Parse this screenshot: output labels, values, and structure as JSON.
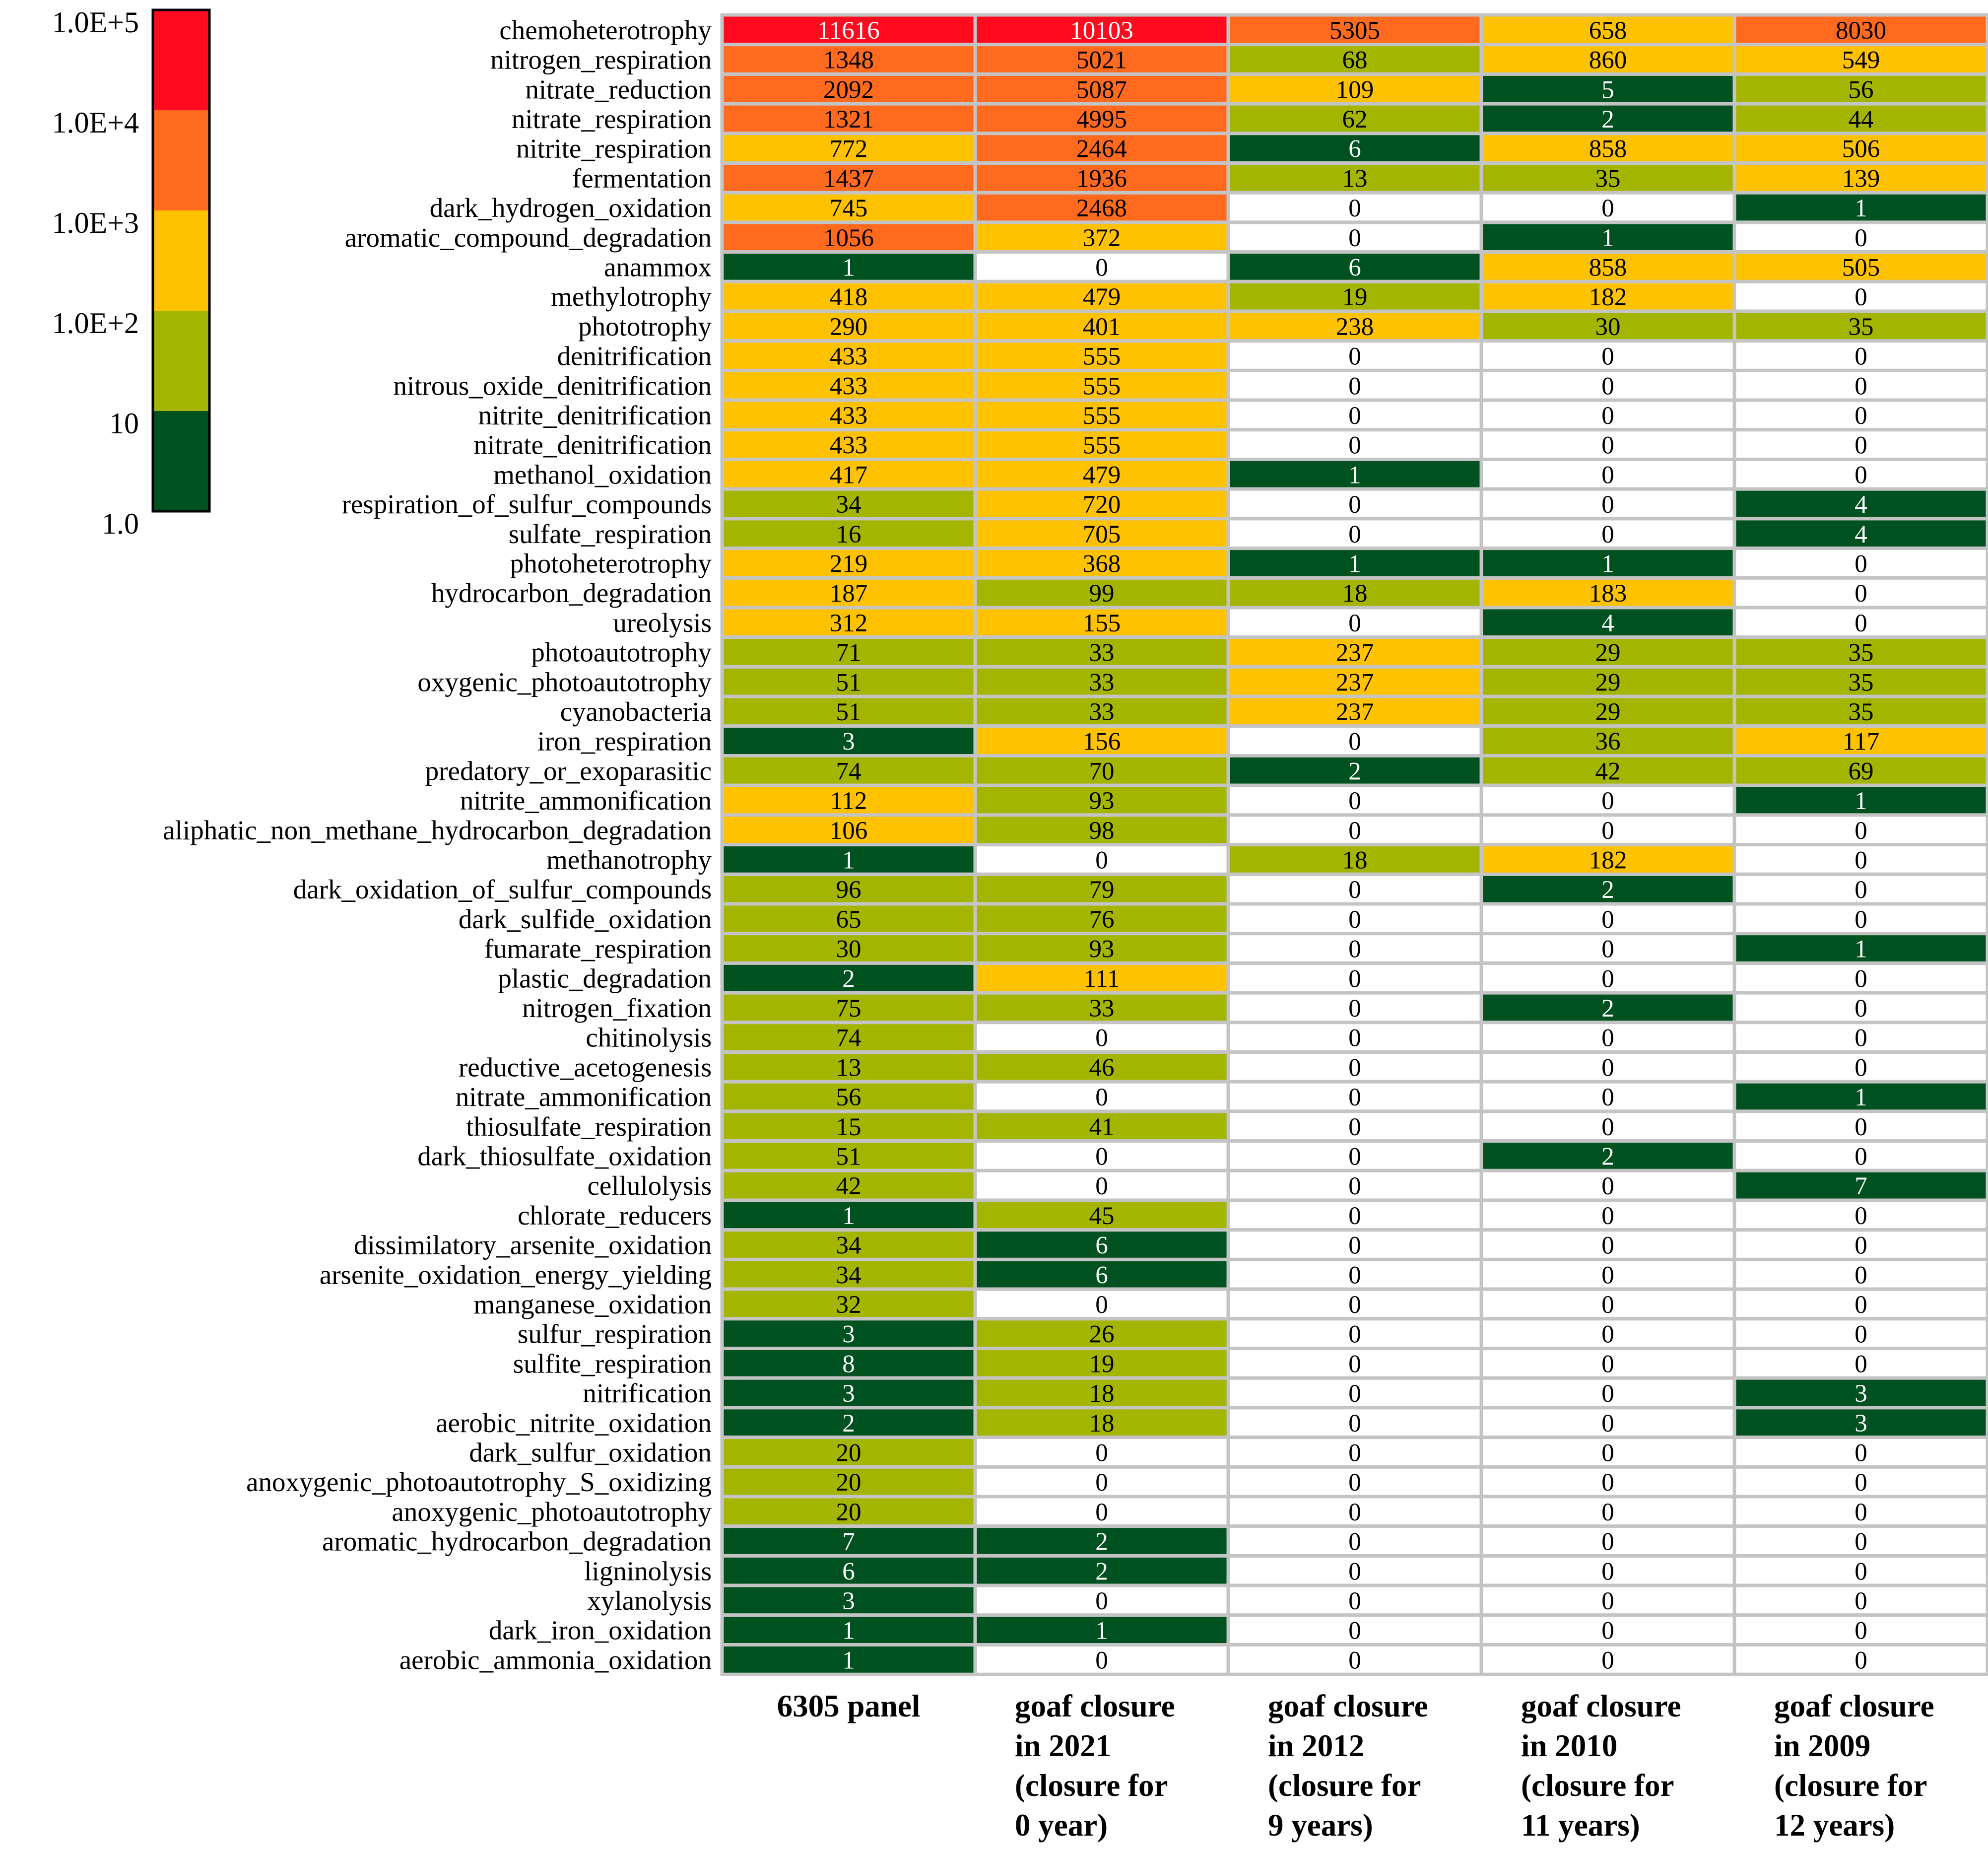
{
  "chart_data": {
    "type": "heatmap",
    "title": "",
    "scale": "log10",
    "columns": [
      [
        "6305 panel"
      ],
      [
        "goaf closure",
        "in 2021",
        "(closure for",
        "0 year)"
      ],
      [
        "goaf closure",
        "in 2012",
        "(closure for",
        "9 years)"
      ],
      [
        "goaf closure",
        "in 2010",
        "(closure for",
        "11 years)"
      ],
      [
        "goaf closure",
        "in 2009",
        "(closure for",
        "12 years)"
      ]
    ],
    "rows": [
      "chemoheterotrophy",
      "nitrogen_respiration",
      "nitrate_reduction",
      "nitrate_respiration",
      "nitrite_respiration",
      "fermentation",
      "dark_hydrogen_oxidation",
      "aromatic_compound_degradation",
      "anammox",
      "methylotrophy",
      "phototrophy",
      "denitrification",
      "nitrous_oxide_denitrification",
      "nitrite_denitrification",
      "nitrate_denitrification",
      "methanol_oxidation",
      "respiration_of_sulfur_compounds",
      "sulfate_respiration",
      "photoheterotrophy",
      "hydrocarbon_degradation",
      "ureolysis",
      "photoautotrophy",
      "oxygenic_photoautotrophy",
      "cyanobacteria",
      "iron_respiration",
      "predatory_or_exoparasitic",
      "nitrite_ammonification",
      "aliphatic_non_methane_hydrocarbon_degradation",
      "methanotrophy",
      "dark_oxidation_of_sulfur_compounds",
      "dark_sulfide_oxidation",
      "fumarate_respiration",
      "plastic_degradation",
      "nitrogen_fixation",
      "chitinolysis",
      "reductive_acetogenesis",
      "nitrate_ammonification",
      "thiosulfate_respiration",
      "dark_thiosulfate_oxidation",
      "cellulolysis",
      "chlorate_reducers",
      "dissimilatory_arsenite_oxidation",
      "arsenite_oxidation_energy_yielding",
      "manganese_oxidation",
      "sulfur_respiration",
      "sulfite_respiration",
      "nitrification",
      "aerobic_nitrite_oxidation",
      "dark_sulfur_oxidation",
      "anoxygenic_photoautotrophy_S_oxidizing",
      "anoxygenic_photoautotrophy",
      "aromatic_hydrocarbon_degradation",
      "ligninolysis",
      "xylanolysis",
      "dark_iron_oxidation",
      "aerobic_ammonia_oxidation"
    ],
    "values": [
      [
        11616,
        10103,
        5305,
        658,
        8030
      ],
      [
        1348,
        5021,
        68,
        860,
        549
      ],
      [
        2092,
        5087,
        109,
        5,
        56
      ],
      [
        1321,
        4995,
        62,
        2,
        44
      ],
      [
        772,
        2464,
        6,
        858,
        506
      ],
      [
        1437,
        1936,
        13,
        35,
        139
      ],
      [
        745,
        2468,
        0,
        0,
        1
      ],
      [
        1056,
        372,
        0,
        1,
        0
      ],
      [
        1,
        0,
        6,
        858,
        505
      ],
      [
        418,
        479,
        19,
        182,
        0
      ],
      [
        290,
        401,
        238,
        30,
        35
      ],
      [
        433,
        555,
        0,
        0,
        0
      ],
      [
        433,
        555,
        0,
        0,
        0
      ],
      [
        433,
        555,
        0,
        0,
        0
      ],
      [
        433,
        555,
        0,
        0,
        0
      ],
      [
        417,
        479,
        1,
        0,
        0
      ],
      [
        34,
        720,
        0,
        0,
        4
      ],
      [
        16,
        705,
        0,
        0,
        4
      ],
      [
        219,
        368,
        1,
        1,
        0
      ],
      [
        187,
        99,
        18,
        183,
        0
      ],
      [
        312,
        155,
        0,
        4,
        0
      ],
      [
        71,
        33,
        237,
        29,
        35
      ],
      [
        51,
        33,
        237,
        29,
        35
      ],
      [
        51,
        33,
        237,
        29,
        35
      ],
      [
        3,
        156,
        0,
        36,
        117
      ],
      [
        74,
        70,
        2,
        42,
        69
      ],
      [
        112,
        93,
        0,
        0,
        1
      ],
      [
        106,
        98,
        0,
        0,
        0
      ],
      [
        1,
        0,
        18,
        182,
        0
      ],
      [
        96,
        79,
        0,
        2,
        0
      ],
      [
        65,
        76,
        0,
        0,
        0
      ],
      [
        30,
        93,
        0,
        0,
        1
      ],
      [
        2,
        111,
        0,
        0,
        0
      ],
      [
        75,
        33,
        0,
        2,
        0
      ],
      [
        74,
        0,
        0,
        0,
        0
      ],
      [
        13,
        46,
        0,
        0,
        0
      ],
      [
        56,
        0,
        0,
        0,
        1
      ],
      [
        15,
        41,
        0,
        0,
        0
      ],
      [
        51,
        0,
        0,
        2,
        0
      ],
      [
        42,
        0,
        0,
        0,
        7
      ],
      [
        1,
        45,
        0,
        0,
        0
      ],
      [
        34,
        6,
        0,
        0,
        0
      ],
      [
        34,
        6,
        0,
        0,
        0
      ],
      [
        32,
        0,
        0,
        0,
        0
      ],
      [
        3,
        26,
        0,
        0,
        0
      ],
      [
        8,
        19,
        0,
        0,
        0
      ],
      [
        3,
        18,
        0,
        0,
        3
      ],
      [
        2,
        18,
        0,
        0,
        3
      ],
      [
        20,
        0,
        0,
        0,
        0
      ],
      [
        20,
        0,
        0,
        0,
        0
      ],
      [
        20,
        0,
        0,
        0,
        0
      ],
      [
        7,
        2,
        0,
        0,
        0
      ],
      [
        6,
        2,
        0,
        0,
        0
      ],
      [
        3,
        0,
        0,
        0,
        0
      ],
      [
        1,
        1,
        0,
        0,
        0
      ],
      [
        1,
        0,
        0,
        0,
        0
      ]
    ],
    "legend": {
      "ticks": [
        "1.0E+5",
        "1.0E+4",
        "1.0E+3",
        "1.0E+2",
        "10",
        "1.0"
      ],
      "bins": [
        {
          "min": 10000,
          "max": 100000,
          "color": "#ff0a1e"
        },
        {
          "min": 1000,
          "max": 10000,
          "color": "#ff6a1f"
        },
        {
          "min": 100,
          "max": 1000,
          "color": "#ffc200"
        },
        {
          "min": 10,
          "max": 100,
          "color": "#a4b500"
        },
        {
          "min": 1,
          "max": 10,
          "color": "#005120"
        }
      ],
      "zero_color": "#ffffff"
    },
    "colors": {
      "grid": "#c4c4c4",
      "legend_border": "#000000",
      "dark_text": "#000000",
      "light_text": "#ffffff"
    }
  }
}
